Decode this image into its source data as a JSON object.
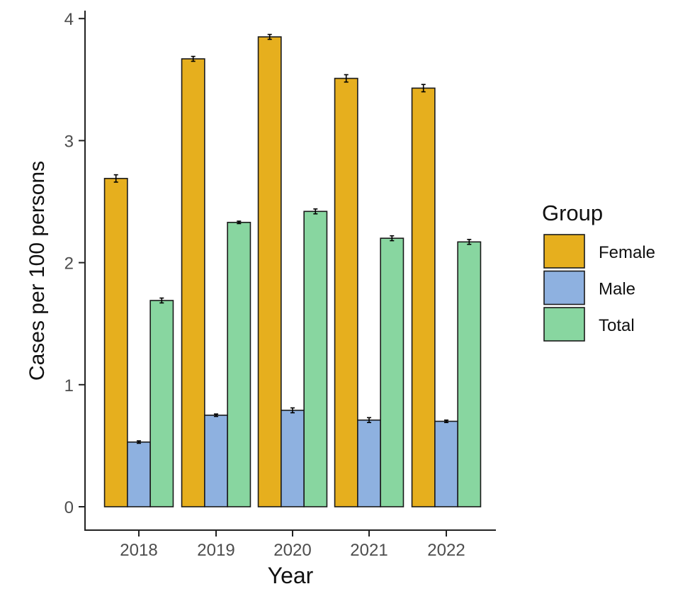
{
  "chart_data": {
    "type": "bar",
    "title": "",
    "xlabel": "Year",
    "ylabel": "Cases per 100 persons",
    "categories": [
      "2018",
      "2019",
      "2020",
      "2021",
      "2022"
    ],
    "ylim": [
      0,
      4.1
    ],
    "yticks": [
      "0",
      "1",
      "2",
      "3",
      "4"
    ],
    "grid": false,
    "legend": {
      "title": "Group",
      "placement": "right"
    },
    "series": [
      {
        "name": "Female",
        "color": "#E6AF1E",
        "values": [
          2.69,
          3.67,
          3.85,
          3.51,
          3.43
        ],
        "errors": [
          0.03,
          0.02,
          0.02,
          0.03,
          0.03
        ]
      },
      {
        "name": "Male",
        "color": "#8EB1E0",
        "values": [
          0.53,
          0.75,
          0.79,
          0.71,
          0.7
        ],
        "errors": [
          0.01,
          0.01,
          0.02,
          0.02,
          0.01
        ]
      },
      {
        "name": "Total",
        "color": "#88D6A0",
        "values": [
          1.69,
          2.33,
          2.42,
          2.2,
          2.17
        ],
        "errors": [
          0.02,
          0.01,
          0.02,
          0.02,
          0.02
        ]
      }
    ]
  }
}
